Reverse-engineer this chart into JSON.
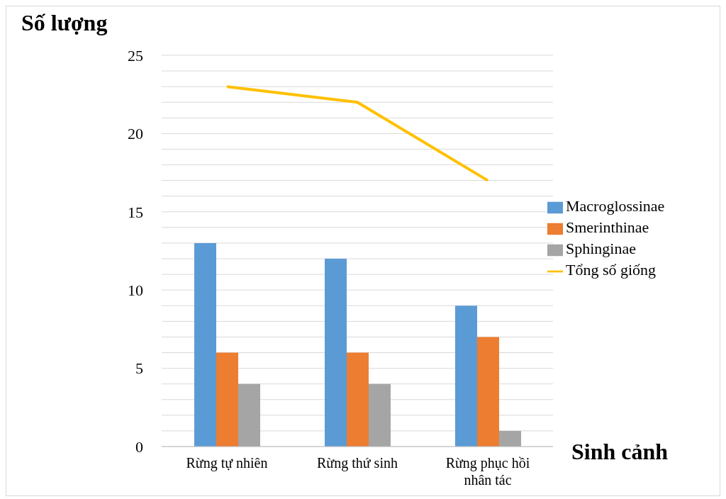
{
  "chart_data": {
    "type": "bar",
    "xlabel": "Sinh cảnh",
    "ylabel": "Số lượng",
    "categories": [
      "Rừng tự nhiên",
      "Rừng thứ sinh",
      "Rừng phục hồi nhân tác"
    ],
    "series": [
      {
        "name": "Macroglossinae",
        "color": "#5b9bd5",
        "values": [
          13,
          12,
          9
        ]
      },
      {
        "name": "Smerinthinae",
        "color": "#ed7d31",
        "values": [
          6,
          6,
          7
        ]
      },
      {
        "name": "Sphinginae",
        "color": "#a5a5a5",
        "values": [
          4,
          4,
          1
        ]
      },
      {
        "name": "Tổng số giống",
        "type": "line",
        "color": "#ffc000",
        "values": [
          23,
          22,
          17
        ]
      }
    ],
    "ylim": [
      0,
      25
    ],
    "yticks": [
      0,
      {
        "value": 1,
        "label": null
      },
      {
        "value": 2,
        "label": null
      },
      {
        "value": 3,
        "label": null
      },
      {
        "value": 4,
        "label": null
      },
      5,
      {
        "value": 6,
        "label": null
      },
      {
        "value": 7,
        "label": null
      },
      {
        "value": 8,
        "label": null
      },
      {
        "value": 9,
        "label": null
      },
      10,
      {
        "value": 11,
        "label": null
      },
      {
        "value": 12,
        "label": null
      },
      {
        "value": 13,
        "label": null
      },
      {
        "value": 14,
        "label": null
      },
      15,
      {
        "value": 16,
        "label": null
      },
      {
        "value": 17,
        "label": null
      },
      {
        "value": 18,
        "label": null
      },
      {
        "value": 19,
        "label": null
      },
      20,
      {
        "value": 21,
        "label": null
      },
      {
        "value": 22,
        "label": null
      },
      {
        "value": 23,
        "label": null
      },
      {
        "value": 24,
        "label": null
      },
      25
    ],
    "grid": "y",
    "legend": "right",
    "marker": "none",
    "line_style": "solid"
  }
}
